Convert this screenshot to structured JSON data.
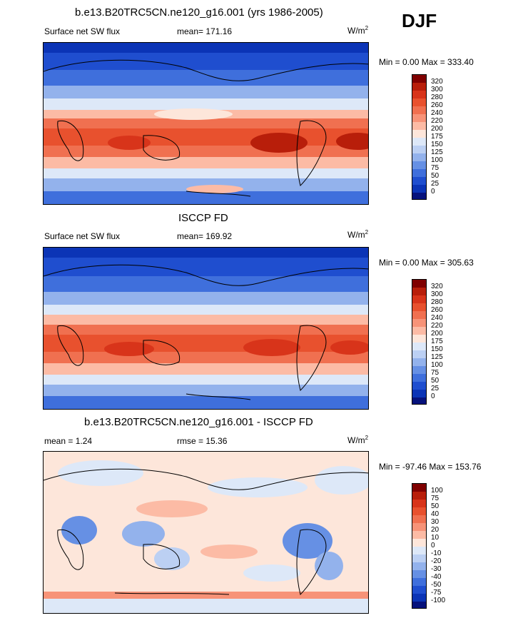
{
  "season": "DJF",
  "panels": [
    {
      "title": "b.e13.B20TRC5CN.ne120_g16.001 (yrs 1986-2005)",
      "left_label": "Surface net SW flux",
      "center_label": "mean= 171.16",
      "units": "W/m",
      "units_sup": "2",
      "minmax": "Min =   0.00 Max = 333.40",
      "levels": [
        "320",
        "300",
        "280",
        "260",
        "240",
        "220",
        "200",
        "175",
        "150",
        "125",
        "100",
        "75",
        "50",
        "25",
        "0"
      ]
    },
    {
      "title": "ISCCP FD",
      "left_label": "Surface net SW flux",
      "center_label": "mean= 169.92",
      "units": "W/m",
      "units_sup": "2",
      "minmax": "Min =   0.00 Max = 305.63",
      "levels": [
        "320",
        "300",
        "280",
        "260",
        "240",
        "220",
        "200",
        "175",
        "150",
        "125",
        "100",
        "75",
        "50",
        "25",
        "0"
      ]
    },
    {
      "title": "b.e13.B20TRC5CN.ne120_g16.001 - ISCCP FD",
      "left_label": "mean =   1.24",
      "center_label": "rmse =  15.36",
      "units": "W/m",
      "units_sup": "2",
      "minmax": "Min = -97.46 Max = 153.76",
      "levels": [
        "100",
        "75",
        "50",
        "40",
        "30",
        "20",
        "10",
        "0",
        "-10",
        "-20",
        "-30",
        "-40",
        "-50",
        "-75",
        "-100"
      ]
    }
  ],
  "colors": {
    "scale": [
      "#800000",
      "#b81e0a",
      "#d8341a",
      "#e8512e",
      "#f07050",
      "#f79378",
      "#fcbba5",
      "#fde6da",
      "#dde8f8",
      "#bcd0f3",
      "#93b2ec",
      "#6690e4",
      "#3f6fdc",
      "#1f4ecf",
      "#0b34b6",
      "#06127c"
    ]
  },
  "chart_data": {
    "type": "heatmap",
    "description_note": "",
    "panels": [
      {
        "field": "Surface net SW flux",
        "mean": 171.16,
        "min": 0.0,
        "max": 333.4
      },
      {
        "field": "Surface net SW flux",
        "mean": 169.92,
        "min": 0.0,
        "max": 305.63
      },
      {
        "field": "difference",
        "mean": 1.24,
        "rmse": 15.36,
        "min": -97.46,
        "max": 153.76
      }
    ]
  }
}
